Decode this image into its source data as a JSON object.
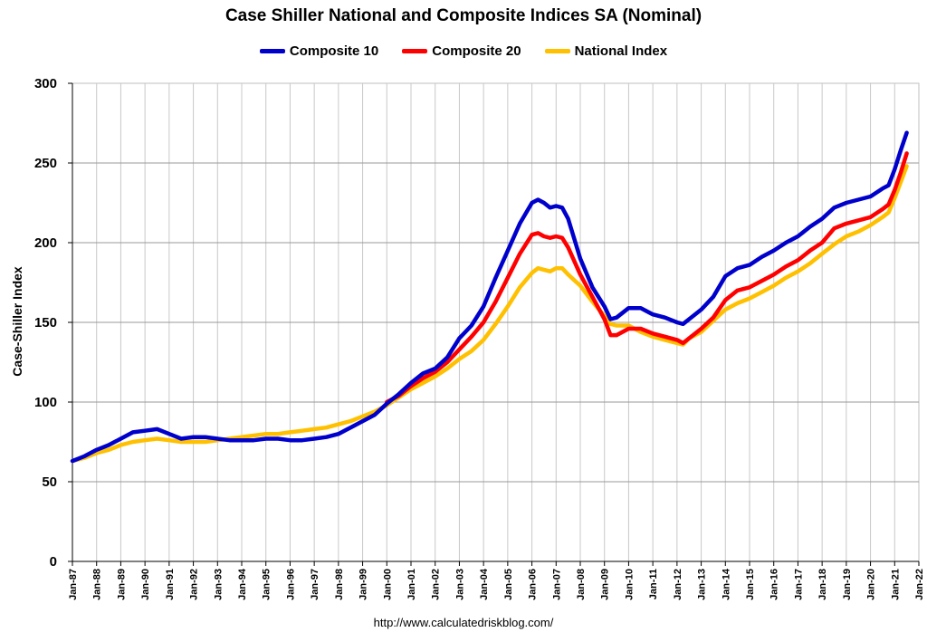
{
  "title": "Case Shiller National and Composite Indices SA (Nominal)",
  "footer": "http://www.calculatedriskblog.com/",
  "colors": {
    "composite10": "#0000CC",
    "composite20": "#FF0000",
    "national": "#FFC000",
    "grid": "#c8c8c8"
  },
  "legend": [
    {
      "label": "Composite 10",
      "color": "#0000CC"
    },
    {
      "label": "Composite 20",
      "color": "#FF0000"
    },
    {
      "label": "National Index",
      "color": "#FFC000"
    }
  ],
  "chart_data": {
    "type": "line",
    "title": "Case Shiller National and Composite Indices SA (Nominal)",
    "ylabel": "Case-Shiller Index",
    "xlabel": "",
    "ylim": [
      0,
      300
    ],
    "yticks": [
      0,
      50,
      100,
      150,
      200,
      250,
      300
    ],
    "xlim": [
      1987,
      2022
    ],
    "xticks": [
      "Jan-87",
      "Jan-88",
      "Jan-89",
      "Jan-90",
      "Jan-91",
      "Jan-92",
      "Jan-93",
      "Jan-94",
      "Jan-95",
      "Jan-96",
      "Jan-97",
      "Jan-98",
      "Jan-99",
      "Jan-00",
      "Jan-01",
      "Jan-02",
      "Jan-03",
      "Jan-04",
      "Jan-05",
      "Jan-06",
      "Jan-07",
      "Jan-08",
      "Jan-09",
      "Jan-10",
      "Jan-11",
      "Jan-12",
      "Jan-13",
      "Jan-14",
      "Jan-15",
      "Jan-16",
      "Jan-17",
      "Jan-18",
      "Jan-19",
      "Jan-20",
      "Jan-21",
      "Jan-22"
    ],
    "grid": true,
    "legend_position": "top",
    "series": [
      {
        "name": "Composite 10",
        "color": "#0000CC",
        "points": [
          [
            1987.0,
            63
          ],
          [
            1987.5,
            66
          ],
          [
            1988.0,
            70
          ],
          [
            1988.5,
            73
          ],
          [
            1989.0,
            77
          ],
          [
            1989.5,
            81
          ],
          [
            1990.0,
            82
          ],
          [
            1990.5,
            83
          ],
          [
            1991.0,
            80
          ],
          [
            1991.5,
            77
          ],
          [
            1992.0,
            78
          ],
          [
            1992.5,
            78
          ],
          [
            1993.0,
            77
          ],
          [
            1993.5,
            76
          ],
          [
            1994.0,
            76
          ],
          [
            1994.5,
            76
          ],
          [
            1995.0,
            77
          ],
          [
            1995.5,
            77
          ],
          [
            1996.0,
            76
          ],
          [
            1996.5,
            76
          ],
          [
            1997.0,
            77
          ],
          [
            1997.5,
            78
          ],
          [
            1998.0,
            80
          ],
          [
            1998.5,
            84
          ],
          [
            1999.0,
            88
          ],
          [
            1999.5,
            92
          ],
          [
            2000.0,
            99
          ],
          [
            2000.5,
            105
          ],
          [
            2001.0,
            112
          ],
          [
            2001.5,
            118
          ],
          [
            2002.0,
            121
          ],
          [
            2002.5,
            128
          ],
          [
            2003.0,
            140
          ],
          [
            2003.5,
            148
          ],
          [
            2004.0,
            160
          ],
          [
            2004.5,
            178
          ],
          [
            2005.0,
            195
          ],
          [
            2005.5,
            212
          ],
          [
            2006.0,
            225
          ],
          [
            2006.25,
            227
          ],
          [
            2006.5,
            225
          ],
          [
            2006.75,
            222
          ],
          [
            2007.0,
            223
          ],
          [
            2007.25,
            222
          ],
          [
            2007.5,
            215
          ],
          [
            2008.0,
            190
          ],
          [
            2008.5,
            172
          ],
          [
            2009.0,
            160
          ],
          [
            2009.25,
            152
          ],
          [
            2009.5,
            153
          ],
          [
            2010.0,
            159
          ],
          [
            2010.5,
            159
          ],
          [
            2011.0,
            155
          ],
          [
            2011.5,
            153
          ],
          [
            2012.0,
            150
          ],
          [
            2012.25,
            149
          ],
          [
            2012.5,
            152
          ],
          [
            2013.0,
            158
          ],
          [
            2013.5,
            166
          ],
          [
            2014.0,
            179
          ],
          [
            2014.5,
            184
          ],
          [
            2015.0,
            186
          ],
          [
            2015.5,
            191
          ],
          [
            2016.0,
            195
          ],
          [
            2016.5,
            200
          ],
          [
            2017.0,
            204
          ],
          [
            2017.5,
            210
          ],
          [
            2018.0,
            215
          ],
          [
            2018.5,
            222
          ],
          [
            2019.0,
            225
          ],
          [
            2019.5,
            227
          ],
          [
            2020.0,
            229
          ],
          [
            2020.5,
            234
          ],
          [
            2020.75,
            236
          ],
          [
            2021.0,
            246
          ],
          [
            2021.25,
            258
          ],
          [
            2021.5,
            269
          ]
        ]
      },
      {
        "name": "Composite 20",
        "color": "#FF0000",
        "points": [
          [
            2000.0,
            100
          ],
          [
            2000.5,
            104
          ],
          [
            2001.0,
            110
          ],
          [
            2001.5,
            115
          ],
          [
            2002.0,
            119
          ],
          [
            2002.5,
            125
          ],
          [
            2003.0,
            133
          ],
          [
            2003.5,
            141
          ],
          [
            2004.0,
            150
          ],
          [
            2004.5,
            163
          ],
          [
            2005.0,
            178
          ],
          [
            2005.5,
            193
          ],
          [
            2006.0,
            205
          ],
          [
            2006.25,
            206
          ],
          [
            2006.5,
            204
          ],
          [
            2006.75,
            203
          ],
          [
            2007.0,
            204
          ],
          [
            2007.25,
            203
          ],
          [
            2007.5,
            197
          ],
          [
            2008.0,
            180
          ],
          [
            2008.5,
            166
          ],
          [
            2009.0,
            152
          ],
          [
            2009.25,
            142
          ],
          [
            2009.5,
            142
          ],
          [
            2010.0,
            146
          ],
          [
            2010.5,
            146
          ],
          [
            2011.0,
            143
          ],
          [
            2011.5,
            141
          ],
          [
            2012.0,
            139
          ],
          [
            2012.25,
            137
          ],
          [
            2012.5,
            140
          ],
          [
            2013.0,
            146
          ],
          [
            2013.5,
            153
          ],
          [
            2014.0,
            164
          ],
          [
            2014.5,
            170
          ],
          [
            2015.0,
            172
          ],
          [
            2015.5,
            176
          ],
          [
            2016.0,
            180
          ],
          [
            2016.5,
            185
          ],
          [
            2017.0,
            189
          ],
          [
            2017.5,
            195
          ],
          [
            2018.0,
            200
          ],
          [
            2018.5,
            209
          ],
          [
            2019.0,
            212
          ],
          [
            2019.5,
            214
          ],
          [
            2020.0,
            216
          ],
          [
            2020.5,
            221
          ],
          [
            2020.75,
            224
          ],
          [
            2021.0,
            233
          ],
          [
            2021.25,
            244
          ],
          [
            2021.5,
            256
          ]
        ]
      },
      {
        "name": "National Index",
        "color": "#FFC000",
        "points": [
          [
            1987.0,
            63
          ],
          [
            1987.5,
            65
          ],
          [
            1988.0,
            68
          ],
          [
            1988.5,
            70
          ],
          [
            1989.0,
            73
          ],
          [
            1989.5,
            75
          ],
          [
            1990.0,
            76
          ],
          [
            1990.5,
            77
          ],
          [
            1991.0,
            76
          ],
          [
            1991.5,
            75
          ],
          [
            1992.0,
            75
          ],
          [
            1992.5,
            75
          ],
          [
            1993.0,
            76
          ],
          [
            1993.5,
            77
          ],
          [
            1994.0,
            78
          ],
          [
            1994.5,
            79
          ],
          [
            1995.0,
            80
          ],
          [
            1995.5,
            80
          ],
          [
            1996.0,
            81
          ],
          [
            1996.5,
            82
          ],
          [
            1997.0,
            83
          ],
          [
            1997.5,
            84
          ],
          [
            1998.0,
            86
          ],
          [
            1998.5,
            88
          ],
          [
            1999.0,
            91
          ],
          [
            1999.5,
            94
          ],
          [
            2000.0,
            98
          ],
          [
            2000.5,
            103
          ],
          [
            2001.0,
            108
          ],
          [
            2001.5,
            112
          ],
          [
            2002.0,
            116
          ],
          [
            2002.5,
            121
          ],
          [
            2003.0,
            127
          ],
          [
            2003.5,
            132
          ],
          [
            2004.0,
            139
          ],
          [
            2004.5,
            149
          ],
          [
            2005.0,
            160
          ],
          [
            2005.5,
            172
          ],
          [
            2006.0,
            181
          ],
          [
            2006.25,
            184
          ],
          [
            2006.5,
            183
          ],
          [
            2006.75,
            182
          ],
          [
            2007.0,
            184
          ],
          [
            2007.25,
            184
          ],
          [
            2007.5,
            180
          ],
          [
            2008.0,
            173
          ],
          [
            2008.5,
            163
          ],
          [
            2009.0,
            154
          ],
          [
            2009.25,
            149
          ],
          [
            2009.5,
            148
          ],
          [
            2010.0,
            148
          ],
          [
            2010.5,
            144
          ],
          [
            2011.0,
            141
          ],
          [
            2011.5,
            139
          ],
          [
            2012.0,
            137
          ],
          [
            2012.25,
            136
          ],
          [
            2012.5,
            140
          ],
          [
            2013.0,
            144
          ],
          [
            2013.5,
            151
          ],
          [
            2014.0,
            158
          ],
          [
            2014.5,
            162
          ],
          [
            2015.0,
            165
          ],
          [
            2015.5,
            169
          ],
          [
            2016.0,
            173
          ],
          [
            2016.5,
            178
          ],
          [
            2017.0,
            182
          ],
          [
            2017.5,
            187
          ],
          [
            2018.0,
            193
          ],
          [
            2018.5,
            199
          ],
          [
            2019.0,
            204
          ],
          [
            2019.5,
            207
          ],
          [
            2020.0,
            211
          ],
          [
            2020.5,
            216
          ],
          [
            2020.75,
            219
          ],
          [
            2021.0,
            228
          ],
          [
            2021.25,
            238
          ],
          [
            2021.5,
            248
          ]
        ]
      }
    ]
  }
}
